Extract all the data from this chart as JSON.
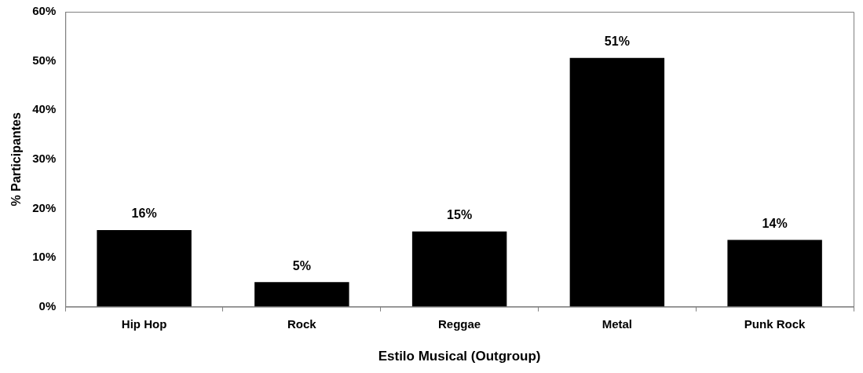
{
  "chart_data": {
    "type": "bar",
    "xlabel": "Estilo Musical (Outgroup)",
    "ylabel": "% Participantes",
    "categories": [
      "Hip Hop",
      "Rock",
      "Reggae",
      "Metal",
      "Punk Rock"
    ],
    "values": [
      15.6,
      5,
      15.3,
      50.6,
      13.6
    ],
    "color": "#000000",
    "value_labels": [
      "16%",
      "5%",
      "15%",
      "51%",
      "14%"
    ],
    "ylim": [
      0,
      60
    ],
    "yticks": [
      {
        "value": 0,
        "label": "0%"
      },
      {
        "value": 10,
        "label": "10%"
      },
      {
        "value": 20,
        "label": "20%"
      },
      {
        "value": 30,
        "label": "30%"
      },
      {
        "value": 40,
        "label": "40%"
      },
      {
        "value": 50,
        "label": "50%"
      },
      {
        "value": 60,
        "label": "60%"
      }
    ],
    "grid": false,
    "legend": false
  }
}
